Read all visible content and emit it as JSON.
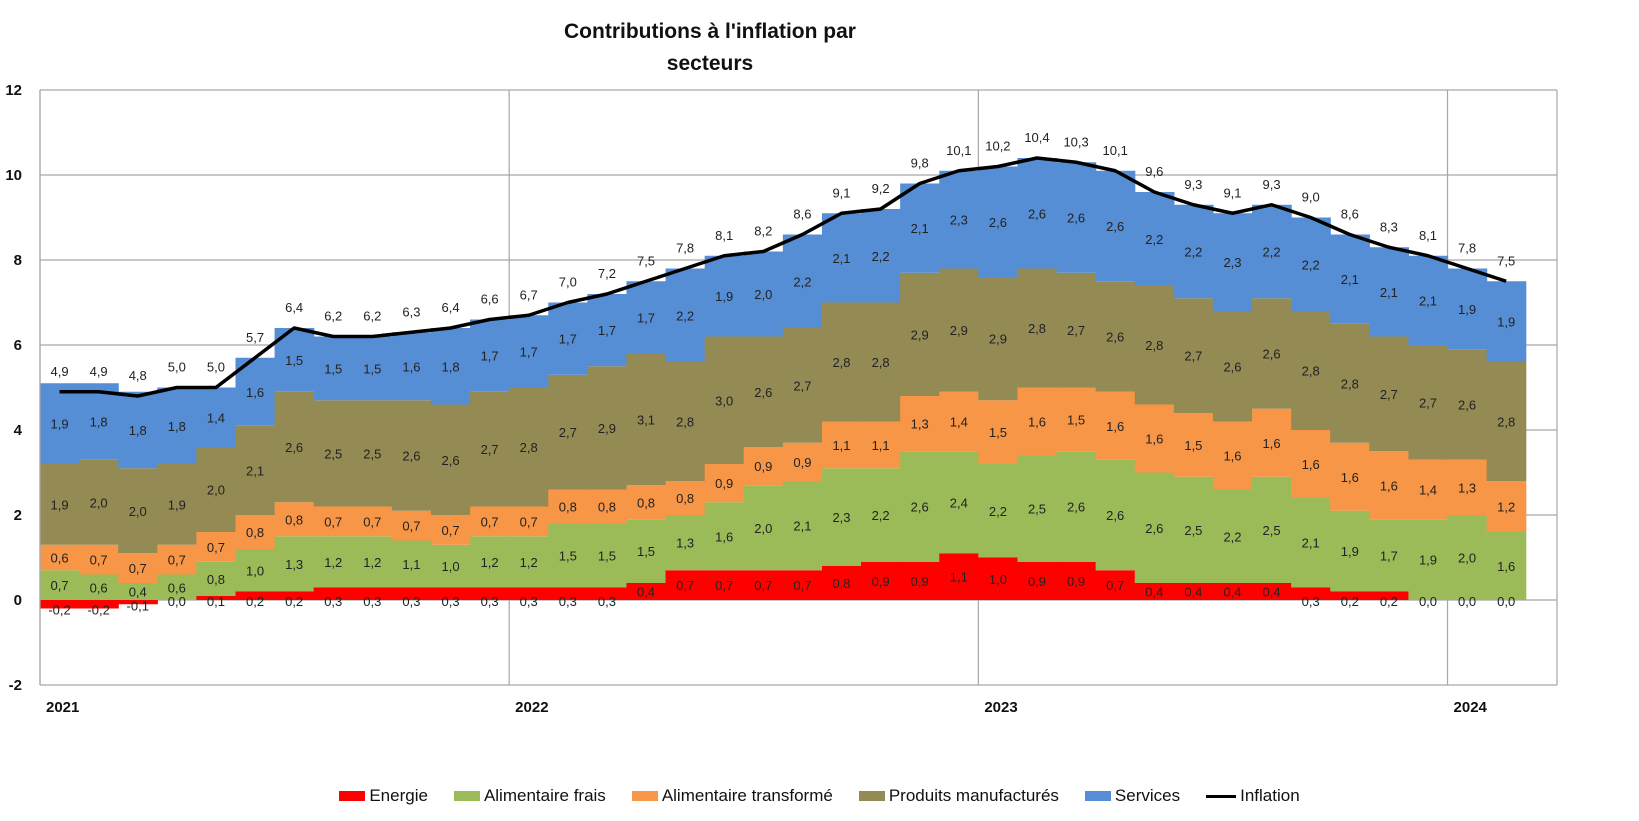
{
  "chart_data": {
    "type": "bar",
    "subtype": "stacked-bar-with-line",
    "title": "Contributions à l'inflation par secteurs",
    "title_lines": [
      "Contributions à l'inflation par",
      "secteurs"
    ],
    "xlabel": "",
    "ylabel": "",
    "ylim": [
      -2,
      12
    ],
    "yticks": [
      -2,
      0,
      2,
      4,
      6,
      8,
      10,
      12
    ],
    "ytick_labels": [
      "-2",
      "0",
      "2",
      "4",
      "6",
      "8",
      "10",
      "12"
    ],
    "x_year_labels": [
      {
        "label": "2021",
        "index": 0
      },
      {
        "label": "2022",
        "index": 12
      },
      {
        "label": "2023",
        "index": 24
      },
      {
        "label": "2024",
        "index": 36
      }
    ],
    "grid": "vertical at year boundaries, horizontal at y ticks",
    "legend_position": "bottom",
    "categories": [
      "2021-01",
      "2021-02",
      "2021-03",
      "2021-04",
      "2021-05",
      "2021-06",
      "2021-07",
      "2021-08",
      "2021-09",
      "2021-10",
      "2021-11",
      "2021-12",
      "2022-01",
      "2022-02",
      "2022-03",
      "2022-04",
      "2022-05",
      "2022-06",
      "2022-07",
      "2022-08",
      "2022-09",
      "2022-10",
      "2022-11",
      "2022-12",
      "2023-01",
      "2023-02",
      "2023-03",
      "2023-04",
      "2023-05",
      "2023-06",
      "2023-07",
      "2023-08",
      "2023-09",
      "2023-10",
      "2023-11",
      "2023-12",
      "2024-01",
      "2024-02"
    ],
    "series": [
      {
        "name": "Energie",
        "color": "#ff0000",
        "values": [
          -0.2,
          -0.2,
          -0.1,
          0.0,
          0.1,
          0.2,
          0.2,
          0.3,
          0.3,
          0.3,
          0.3,
          0.3,
          0.3,
          0.3,
          0.3,
          0.4,
          0.7,
          0.7,
          0.7,
          0.7,
          0.8,
          0.9,
          0.9,
          1.1,
          1.0,
          0.9,
          0.9,
          0.7,
          0.4,
          0.4,
          0.4,
          0.4,
          0.3,
          0.2,
          0.2,
          0.0,
          0.0,
          0.0
        ]
      },
      {
        "name": "Alimentaire frais",
        "color": "#9bbb59",
        "values": [
          0.7,
          0.6,
          0.4,
          0.6,
          0.8,
          1.0,
          1.3,
          1.2,
          1.2,
          1.1,
          1.0,
          1.2,
          1.2,
          1.5,
          1.5,
          1.5,
          1.3,
          1.6,
          2.0,
          2.1,
          2.3,
          2.2,
          2.6,
          2.4,
          2.2,
          2.5,
          2.6,
          2.6,
          2.6,
          2.5,
          2.2,
          2.5,
          2.1,
          1.9,
          1.7,
          1.9,
          2.0,
          1.6
        ]
      },
      {
        "name": "Alimentaire transformé",
        "color": "#f79646",
        "values": [
          0.6,
          0.7,
          0.7,
          0.7,
          0.7,
          0.8,
          0.8,
          0.7,
          0.7,
          0.7,
          0.7,
          0.7,
          0.7,
          0.8,
          0.8,
          0.8,
          0.8,
          0.9,
          0.9,
          0.9,
          1.1,
          1.1,
          1.3,
          1.4,
          1.5,
          1.6,
          1.5,
          1.6,
          1.6,
          1.5,
          1.6,
          1.6,
          1.6,
          1.6,
          1.6,
          1.4,
          1.3,
          1.2
        ]
      },
      {
        "name": "Produits manufacturés",
        "color": "#948a54",
        "values": [
          1.9,
          2.0,
          2.0,
          1.9,
          2.0,
          2.1,
          2.6,
          2.5,
          2.5,
          2.6,
          2.6,
          2.7,
          2.8,
          2.7,
          2.9,
          3.1,
          2.8,
          3.0,
          2.6,
          2.7,
          2.8,
          2.8,
          2.9,
          2.9,
          2.9,
          2.8,
          2.7,
          2.6,
          2.8,
          2.7,
          2.6,
          2.6,
          2.8,
          2.8,
          2.7,
          2.7,
          2.6,
          2.8
        ]
      },
      {
        "name": "Services",
        "color": "#558ed5",
        "values": [
          1.9,
          1.8,
          1.8,
          1.8,
          1.4,
          1.6,
          1.5,
          1.5,
          1.5,
          1.6,
          1.8,
          1.7,
          1.7,
          1.7,
          1.7,
          1.7,
          2.2,
          1.9,
          2.0,
          2.2,
          2.1,
          2.2,
          2.1,
          2.3,
          2.6,
          2.6,
          2.6,
          2.6,
          2.2,
          2.2,
          2.3,
          2.2,
          2.2,
          2.1,
          2.1,
          2.1,
          1.9,
          1.9
        ]
      },
      {
        "name": "Inflation",
        "color": "#000000",
        "type": "line",
        "values": [
          4.9,
          4.9,
          4.8,
          5.0,
          5.0,
          5.7,
          6.4,
          6.2,
          6.2,
          6.3,
          6.4,
          6.6,
          6.7,
          7.0,
          7.2,
          7.5,
          7.8,
          8.1,
          8.2,
          8.6,
          9.1,
          9.2,
          9.8,
          10.1,
          10.2,
          10.4,
          10.3,
          10.1,
          9.6,
          9.3,
          9.1,
          9.3,
          9.0,
          8.6,
          8.3,
          8.1,
          7.8,
          7.5
        ]
      }
    ]
  }
}
